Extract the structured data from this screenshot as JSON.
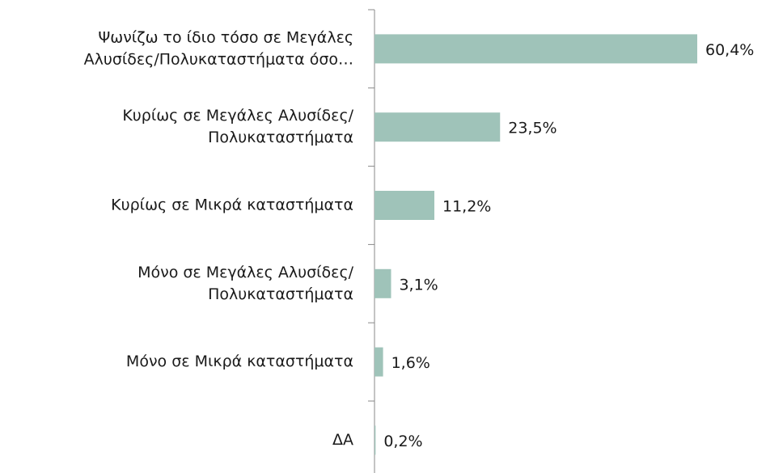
{
  "chart_data": {
    "type": "bar",
    "orientation": "horizontal",
    "categories": [
      [
        "Ψωνίζω το ίδιο τόσο σε Μεγάλες",
        "Αλυσίδες/Πολυκαταστήματα όσο…"
      ],
      [
        "Κυρίως σε Μεγάλες Αλυσίδες/",
        "Πολυκαταστήματα"
      ],
      [
        "Κυρίως σε Μικρά καταστήματα"
      ],
      [
        "Μόνο σε Μεγάλες Αλυσίδες/",
        "Πολυκαταστήματα"
      ],
      [
        "Μόνο σε Μικρά καταστήματα"
      ],
      [
        "ΔΑ"
      ]
    ],
    "values": [
      60.4,
      23.5,
      11.2,
      3.1,
      1.6,
      0.2
    ],
    "value_labels": [
      "60,4%",
      "23,5%",
      "11,2%",
      "3,1%",
      "1,6%",
      "0,2%"
    ],
    "color": "#9fc3b9"
  }
}
